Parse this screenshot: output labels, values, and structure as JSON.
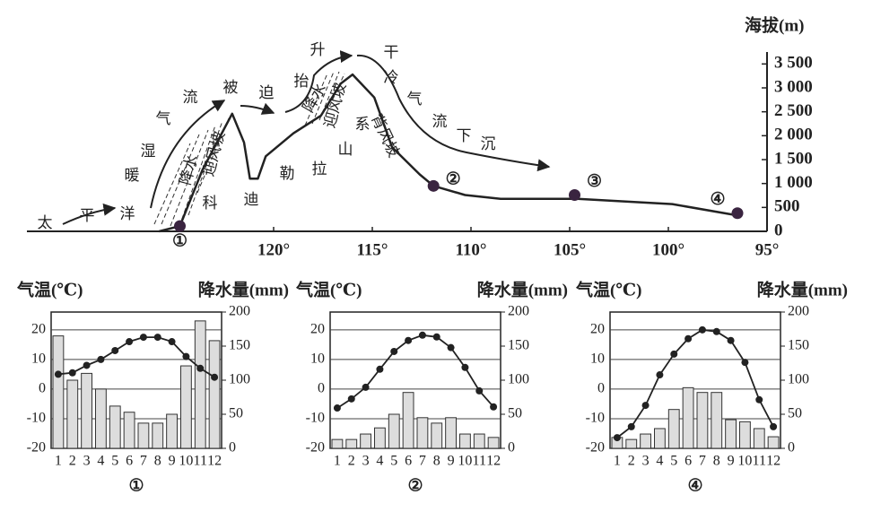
{
  "chart_data": [
    {
      "type": "profile",
      "ylabel": "海拔(m)",
      "x": [
        125.8,
        124.75,
        123.6,
        122.1,
        121.5,
        121.2,
        120.8,
        120.4,
        119.0,
        117.6,
        116.6,
        116.0,
        114.9,
        114.0,
        112.6,
        111.9,
        110.3,
        108.5,
        104.6,
        99.8,
        96.6
      ],
      "values": [
        0,
        110,
        1290,
        2460,
        1860,
        1100,
        1100,
        1570,
        2050,
        2420,
        3090,
        3280,
        2800,
        1760,
        1190,
        950,
        760,
        680,
        680,
        570,
        340
      ],
      "xlim": [
        132.5,
        95
      ],
      "ylim": [
        0,
        3750
      ],
      "xticks": [
        {
          "value": 120,
          "label": "120°"
        },
        {
          "value": 115,
          "label": "115°"
        },
        {
          "value": 110,
          "label": "110°"
        },
        {
          "value": 105,
          "label": "105°"
        },
        {
          "value": 100,
          "label": "100°"
        },
        {
          "value": 95,
          "label": "95°"
        }
      ],
      "yticks": [
        0,
        500,
        {
          "value": 1000,
          "label": "1 000"
        },
        {
          "value": 1500,
          "label": "1 500"
        },
        {
          "value": 2000,
          "label": "2 000"
        },
        {
          "value": 2500,
          "label": "2 500"
        },
        {
          "value": 3000,
          "label": "3 000"
        },
        {
          "value": 3500,
          "label": "3 500"
        }
      ],
      "points": [
        {
          "label": "①",
          "x": 124.75,
          "y": 110
        },
        {
          "label": "②",
          "x": 111.9,
          "y": 950
        },
        {
          "label": "③",
          "x": 104.75,
          "y": 760
        },
        {
          "label": "④",
          "x": 96.5,
          "y": 380
        }
      ],
      "annotations": [
        "太",
        "平",
        "洋",
        "暖",
        "湿",
        "气",
        "流",
        "被",
        "迫",
        "抬",
        "升",
        "干",
        "冷",
        "气",
        "流",
        "下",
        "沉",
        "科",
        "迪",
        "勒",
        "拉",
        "山",
        "系",
        "迎风坡",
        "降水",
        "迎风坡",
        "降水",
        "背风坡"
      ]
    },
    {
      "type": "combo",
      "caption": "①",
      "ylabel": "气温(℃)",
      "y2label": "降水量(mm)",
      "categories": [
        "1",
        "2",
        "3",
        "4",
        "5",
        "6",
        "7",
        "8",
        "9",
        "10",
        "11",
        "12"
      ],
      "ylim": [
        -20,
        26
      ],
      "yticks": [
        -20,
        -10,
        0,
        10,
        20
      ],
      "y2lim": [
        0,
        200
      ],
      "y2ticks": [
        0,
        50,
        100,
        150,
        200
      ],
      "series": [
        {
          "type": "bar",
          "axis": "y2",
          "color": "#dddddd",
          "values": [
            165,
            100,
            110,
            87,
            62,
            53,
            37,
            37,
            50,
            121,
            187,
            158
          ]
        },
        {
          "type": "line",
          "color": "#222222",
          "values": [
            5,
            5.5,
            8,
            10,
            13,
            16,
            17.5,
            17.5,
            16,
            11,
            7,
            4
          ]
        }
      ]
    },
    {
      "type": "combo",
      "caption": "②",
      "ylabel": "气温(℃)",
      "y2label": "降水量(mm)",
      "categories": [
        "1",
        "2",
        "3",
        "4",
        "5",
        "6",
        "7",
        "8",
        "9",
        "10",
        "11",
        "12"
      ],
      "ylim": [
        -20,
        26
      ],
      "yticks": [
        -20,
        -10,
        0,
        10,
        20
      ],
      "y2lim": [
        0,
        200
      ],
      "y2ticks": [
        0,
        50,
        100,
        150,
        200
      ],
      "series": [
        {
          "type": "bar",
          "axis": "y2",
          "color": "#dddddd",
          "values": [
            13,
            13,
            21,
            30,
            50,
            82,
            45,
            37,
            45,
            21,
            21,
            16
          ]
        },
        {
          "type": "line",
          "color": "#222222",
          "values": [
            -6.4,
            -3.3,
            0.6,
            6.7,
            12.7,
            16.4,
            18.2,
            17.6,
            14,
            7.3,
            -0.6,
            -6
          ]
        }
      ]
    },
    {
      "type": "combo",
      "caption": "④",
      "ylabel": "气温(℃)",
      "y2label": "降水量(mm)",
      "categories": [
        "1",
        "2",
        "3",
        "4",
        "5",
        "6",
        "7",
        "8",
        "9",
        "10",
        "11",
        "12"
      ],
      "ylim": [
        -20,
        26
      ],
      "yticks": [
        -20,
        -10,
        0,
        10,
        20
      ],
      "y2lim": [
        0,
        200
      ],
      "y2ticks": [
        0,
        50,
        100,
        150,
        200
      ],
      "series": [
        {
          "type": "bar",
          "axis": "y2",
          "color": "#dddddd",
          "values": [
            16,
            13,
            21,
            29,
            57,
            89,
            82,
            82,
            42,
            39,
            29,
            17
          ]
        },
        {
          "type": "line",
          "color": "#222222",
          "values": [
            -16.4,
            -12.7,
            -5.5,
            4.8,
            11.8,
            17,
            20,
            19.4,
            16.4,
            9,
            -3.6,
            -12.7
          ]
        }
      ]
    }
  ]
}
